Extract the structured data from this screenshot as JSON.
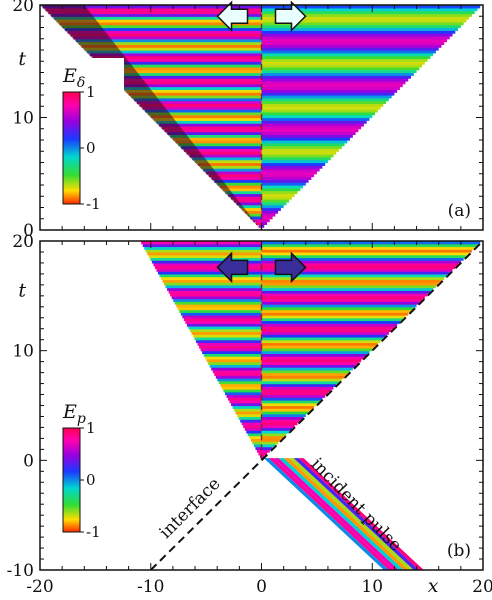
{
  "chart_data": [
    {
      "type": "heatmap",
      "panel_label": "(a)",
      "ylabel": "t",
      "xlabel": "",
      "xlim": [
        -20,
        20
      ],
      "ylim": [
        0,
        20
      ],
      "yticks": [
        {
          "v": 0,
          "t": "0"
        },
        {
          "v": 10,
          "t": "10"
        },
        {
          "v": 20,
          "t": "20"
        }
      ],
      "colorbar": {
        "title": "E",
        "title_sub": "δ",
        "range": [
          -1,
          1
        ],
        "ticks": [
          {
            "v": 1,
            "t": "1"
          },
          {
            "v": 0,
            "t": "0"
          },
          {
            "v": -1,
            "t": "-1"
          }
        ]
      },
      "dashed_line": {
        "x1": 0,
        "y1": 0,
        "x2": 0,
        "y2": 20
      },
      "arrows": [
        "left",
        "right"
      ]
    },
    {
      "type": "heatmap",
      "panel_label": "(b)",
      "ylabel": "t",
      "xlabel": "x",
      "xlim": [
        -20,
        20
      ],
      "ylim": [
        -10,
        20
      ],
      "yticks": [
        {
          "v": -10,
          "t": "-10"
        },
        {
          "v": 0,
          "t": "0"
        },
        {
          "v": 10,
          "t": "10"
        },
        {
          "v": 20,
          "t": "20"
        }
      ],
      "xticks": [
        {
          "v": -20,
          "t": "-20"
        },
        {
          "v": -10,
          "t": "-10"
        },
        {
          "v": 0,
          "t": "0"
        },
        {
          "v": 10,
          "t": "10"
        },
        {
          "v": 20,
          "t": "20"
        }
      ],
      "colorbar": {
        "title": "E",
        "title_sub": "p",
        "range": [
          -1,
          1
        ],
        "ticks": [
          {
            "v": 1,
            "t": "1"
          },
          {
            "v": 0,
            "t": "0"
          },
          {
            "v": -1,
            "t": "-1"
          }
        ]
      },
      "dashed_lines": [
        {
          "x1": 0,
          "y1": 0,
          "x2": 0,
          "y2": 20
        },
        {
          "x1": -10,
          "y1": -10,
          "x2": 20,
          "y2": 20
        }
      ],
      "annotations": [
        "interface",
        "incident pulse"
      ],
      "arrows": [
        "left",
        "right"
      ]
    }
  ]
}
